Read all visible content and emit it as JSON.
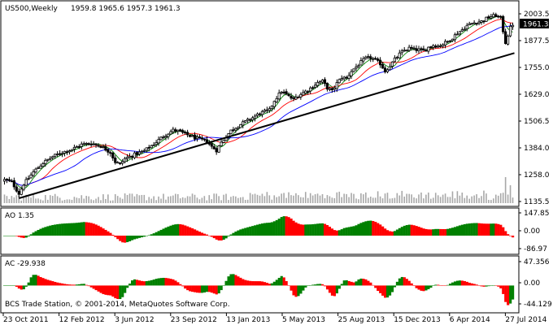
{
  "chart_data": [
    {
      "type": "candlestick",
      "symbol_label": "US500,Weekly",
      "ohlc_label": "1959.8 1965.6 1957.3 1961.3",
      "current_price": "1961.3",
      "y_ticks": [
        "2003.5",
        "1877.5",
        "1755.0",
        "1629.0",
        "1506.5",
        "1384.0",
        "1258.0",
        "1135.5"
      ],
      "x_ticks": [
        "23 Oct 2011",
        "12 Feb 2012",
        "3 Jun 2012",
        "23 Sep 2012",
        "13 Jan 2013",
        "5 May 2013",
        "25 Aug 2013",
        "15 Dec 2013",
        "6 Apr 2014",
        "27 Jul 2014"
      ],
      "ylim": [
        1115,
        2030
      ],
      "close_path": [
        [
          0,
          1225
        ],
        [
          3,
          1215
        ],
        [
          6,
          1160
        ],
        [
          8,
          1205
        ],
        [
          12,
          1262
        ],
        [
          16,
          1305
        ],
        [
          20,
          1335
        ],
        [
          24,
          1355
        ],
        [
          28,
          1370
        ],
        [
          32,
          1392
        ],
        [
          36,
          1398
        ],
        [
          40,
          1385
        ],
        [
          44,
          1355
        ],
        [
          46,
          1310
        ],
        [
          48,
          1300
        ],
        [
          50,
          1325
        ],
        [
          54,
          1345
        ],
        [
          58,
          1362
        ],
        [
          62,
          1395
        ],
        [
          66,
          1432
        ],
        [
          70,
          1460
        ],
        [
          72,
          1456
        ],
        [
          76,
          1438
        ],
        [
          80,
          1420
        ],
        [
          84,
          1408
        ],
        [
          86,
          1382
        ],
        [
          88,
          1365
        ],
        [
          90,
          1402
        ],
        [
          94,
          1458
        ],
        [
          98,
          1488
        ],
        [
          102,
          1512
        ],
        [
          106,
          1540
        ],
        [
          110,
          1555
        ],
        [
          112,
          1600
        ],
        [
          115,
          1645
        ],
        [
          118,
          1620
        ],
        [
          120,
          1605
        ],
        [
          122,
          1625
        ],
        [
          126,
          1650
        ],
        [
          130,
          1685
        ],
        [
          132,
          1692
        ],
        [
          134,
          1660
        ],
        [
          136,
          1645
        ],
        [
          138,
          1682
        ],
        [
          140,
          1710
        ],
        [
          142,
          1705
        ],
        [
          144,
          1740
        ],
        [
          146,
          1760
        ],
        [
          148,
          1782
        ],
        [
          150,
          1800
        ],
        [
          152,
          1803
        ],
        [
          154,
          1790
        ],
        [
          156,
          1775
        ],
        [
          158,
          1740
        ],
        [
          160,
          1765
        ],
        [
          162,
          1795
        ],
        [
          164,
          1820
        ],
        [
          166,
          1838
        ],
        [
          168,
          1848
        ],
        [
          170,
          1842
        ],
        [
          172,
          1840
        ],
        [
          174,
          1835
        ],
        [
          176,
          1852
        ],
        [
          178,
          1862
        ],
        [
          180,
          1858
        ],
        [
          182,
          1868
        ],
        [
          184,
          1880
        ],
        [
          186,
          1898
        ],
        [
          188,
          1920
        ],
        [
          190,
          1935
        ],
        [
          192,
          1955
        ],
        [
          194,
          1965
        ],
        [
          196,
          1972
        ],
        [
          198,
          1975
        ],
        [
          200,
          1988
        ],
        [
          202,
          1998
        ],
        [
          204,
          2003
        ],
        [
          206,
          1990
        ],
        [
          207,
          1930
        ],
        [
          208,
          1875
        ],
        [
          209,
          1910
        ],
        [
          210,
          1945
        ],
        [
          211,
          1961.3
        ]
      ],
      "trendline": [
        [
          1177,
          1138
        ],
        [
          1970,
          1825
        ]
      ],
      "ma_fast_color": "#008000",
      "ma_mid_color": "#ff0000",
      "ma_slow_color": "#0000ff",
      "trendline_color": "#000000",
      "candle_color": "#000000"
    },
    {
      "type": "bar",
      "indicator": "Awesome Oscillator",
      "label": "AO 1.35",
      "y_ticks": [
        "147.85",
        "0.00",
        "-86.97"
      ],
      "ylim": [
        -115,
        170
      ],
      "up_color": "#008000",
      "down_color": "#ff0000"
    },
    {
      "type": "bar",
      "indicator": "Accelerator Oscillator",
      "label": "AC -29.938",
      "y_ticks": [
        "47.356",
        "0.00",
        "-44.129"
      ],
      "ylim": [
        -52,
        55
      ],
      "up_color": "#008000",
      "down_color": "#ff0000"
    }
  ],
  "footer": {
    "copyright": "BCS Trade Station, © 2001-2014, MetaQuotes Software Corp."
  }
}
